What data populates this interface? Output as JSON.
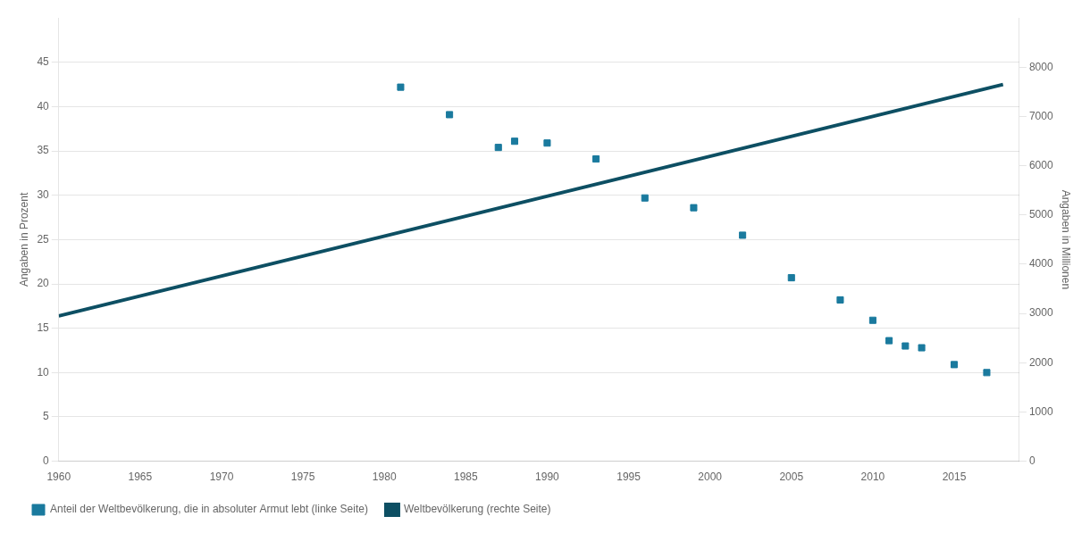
{
  "chart_data": {
    "type": "scatter",
    "series": [
      {
        "name": "Anteil der Weltbevölkerung, die in absoluter Armut lebt (linke Seite)",
        "type": "scatter",
        "marker": "square",
        "color": "#1a7a9e",
        "x": [
          1981,
          1984,
          1987,
          1988,
          1990,
          1993,
          1996,
          1999,
          2002,
          2005,
          2008,
          2010,
          2011,
          2012,
          2013,
          2015,
          2017
        ],
        "values": [
          42.2,
          39.1,
          35.4,
          36.1,
          35.9,
          34.1,
          29.7,
          28.6,
          25.5,
          20.7,
          18.2,
          15.9,
          13.6,
          13.0,
          12.8,
          10.9,
          10.0
        ]
      },
      {
        "name": "Weltbevölkerung (rechte Seite)",
        "type": "line",
        "line_style": "solid",
        "color": "#0d4f63",
        "axis": "y2",
        "x": [
          1960,
          2018
        ],
        "values": [
          2950,
          7650
        ]
      }
    ],
    "xlim": [
      1960,
      2019
    ],
    "xticks": [
      1960,
      1965,
      1970,
      1975,
      1980,
      1985,
      1990,
      1995,
      2000,
      2005,
      2010,
      2015
    ],
    "ylim": [
      0,
      50
    ],
    "yticks": [
      0,
      5,
      10,
      15,
      20,
      25,
      30,
      35,
      40,
      45
    ],
    "y2lim": [
      0,
      9000
    ],
    "y2ticks": [
      0,
      1000,
      2000,
      3000,
      4000,
      5000,
      6000,
      7000,
      8000
    ],
    "y_label": "Angaben in Prozent",
    "y2_label": "Angaben in Millionen",
    "grid": true,
    "legend": "bottom"
  }
}
